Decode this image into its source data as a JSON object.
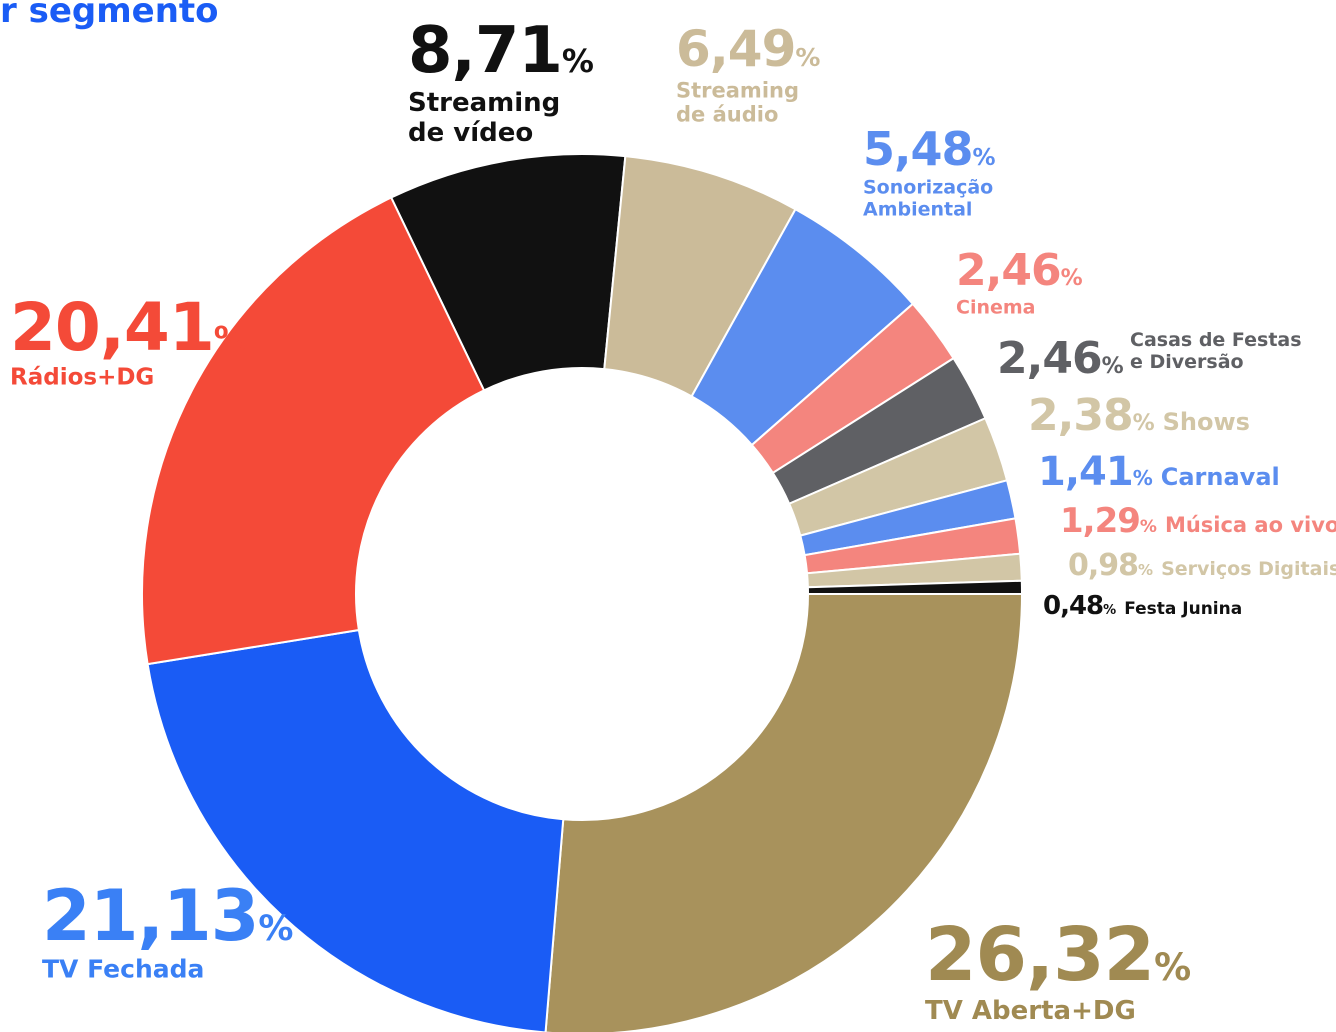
{
  "chart_data": {
    "type": "donut",
    "title": "r segmento",
    "categories": [
      "Streaming de vídeo",
      "Streaming de áudio",
      "Sonorização Ambiental",
      "Cinema",
      "Casas de Festas e Diversão",
      "Shows",
      "Carnaval",
      "Música ao vivo",
      "Serviços Digitais",
      "Festa Junina",
      "TV Aberta+DG",
      "TV Fechada",
      "Rádios+DG"
    ],
    "values": [
      8.71,
      6.49,
      5.48,
      2.46,
      2.46,
      2.38,
      1.41,
      1.29,
      0.98,
      0.48,
      26.32,
      21.13,
      20.41
    ],
    "value_labels": [
      "8,71%",
      "6,49%",
      "5,48%",
      "2,46%",
      "2,46%",
      "2,38%",
      "1,41%",
      "1,29%",
      "0,98%",
      "0,48%",
      "26,32%",
      "21,13%",
      "20,41%"
    ],
    "colors": [
      "#111111",
      "#cbbb99",
      "#5b8def",
      "#f4857e",
      "#5f6064",
      "#d2c6a6",
      "#5b8def",
      "#f4857e",
      "#d2c6a6",
      "#111111",
      "#a8925c",
      "#1a5cf5",
      "#f44a38"
    ]
  }
}
